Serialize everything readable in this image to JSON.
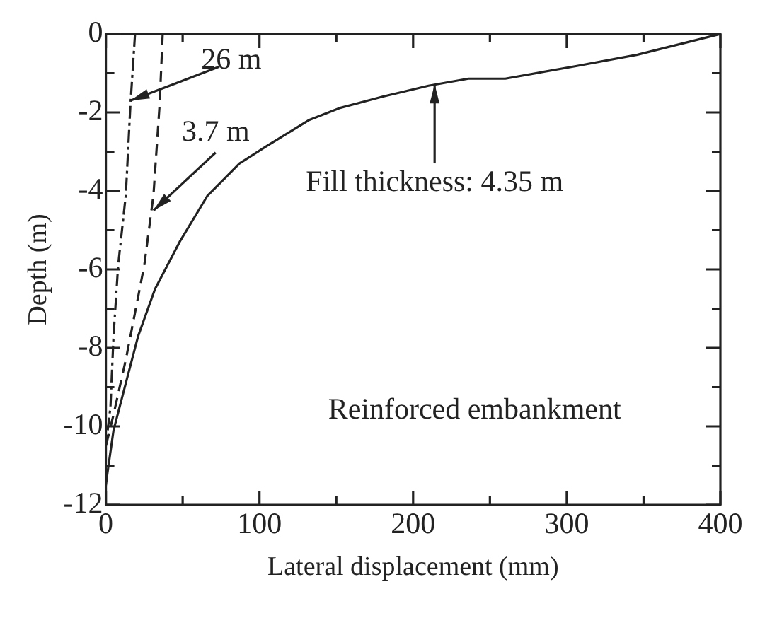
{
  "chart_data": {
    "type": "line",
    "xlabel": "Lateral displacement (mm)",
    "ylabel": "Depth (m)",
    "xlim": [
      0,
      400
    ],
    "ylim": [
      -12,
      0
    ],
    "xticks": [
      0,
      {
        "value": 50,
        "label": null
      },
      100,
      {
        "value": 150,
        "label": null
      },
      200,
      {
        "value": 250,
        "label": null
      },
      300,
      {
        "value": 350,
        "label": null
      },
      400
    ],
    "yticks": [
      -12,
      {
        "value": -11,
        "label": null
      },
      -10,
      {
        "value": -9,
        "label": null
      },
      -8,
      {
        "value": -7,
        "label": null
      },
      -6,
      {
        "value": -5,
        "label": null
      },
      -4,
      {
        "value": -3,
        "label": null
      },
      -2,
      {
        "value": -1,
        "label": null
      },
      0
    ],
    "grid": false,
    "legend": false,
    "marker": "none",
    "series": [
      {
        "color": "#222222",
        "line_style": "solid",
        "x": [
          400,
          346,
          306,
          260,
          236,
          210,
          180,
          152,
          132,
          105,
          87,
          66,
          48,
          32,
          21,
          13,
          5,
          1,
          0
        ],
        "values": [
          0,
          -0.53,
          -0.82,
          -1.14,
          -1.14,
          -1.32,
          -1.6,
          -1.89,
          -2.2,
          -2.85,
          -3.3,
          -4.13,
          -5.3,
          -6.5,
          -7.7,
          -8.9,
          -10.1,
          -11.2,
          -11.5
        ]
      },
      {
        "color": "#222222",
        "line_style": "dashed",
        "x": [
          37,
          35,
          31,
          25,
          19,
          13,
          5,
          0
        ],
        "values": [
          0,
          -1.8,
          -4.1,
          -5.9,
          -7.1,
          -8.3,
          -9.7,
          -10.5
        ]
      },
      {
        "color": "#222222",
        "line_style": "dotted",
        "x": [
          19,
          16,
          13,
          8,
          5,
          3,
          0
        ],
        "values": [
          0,
          -1.8,
          -4.1,
          -5.9,
          -7.7,
          -9.5,
          -10.5
        ]
      }
    ],
    "annotations": [
      {
        "text": "26 m",
        "x": 16,
        "y": -1.7
      },
      {
        "text": "3.7 m",
        "x": 31,
        "y": -4.5
      },
      {
        "text": "Fill thickness: 4.35 m",
        "x": 214,
        "y": -1.28
      },
      "Reinforced embankment"
    ]
  }
}
